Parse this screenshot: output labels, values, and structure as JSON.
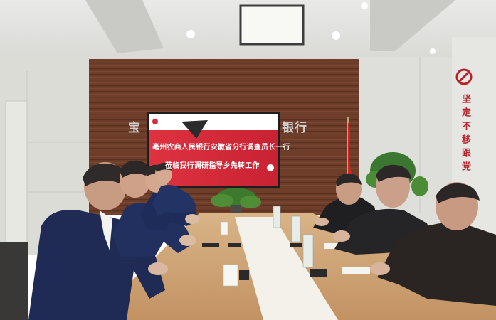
{
  "screen": {
    "line1": "亳州农商人民银行安徽省分行调查员长一行",
    "line2": "莅临我行调研指导乡先转工作"
  },
  "wall": {
    "bank_sign_left": "宝",
    "bank_sign_right": "银行"
  },
  "slogan": {
    "vertical": "坚定不移跟党"
  },
  "colors": {
    "wood_wall": "#6e3e2a",
    "table": "#cfa678",
    "screen_red": "#d62b3a",
    "suit_navy": "#1f2b55",
    "flag_red": "#d4271f"
  }
}
